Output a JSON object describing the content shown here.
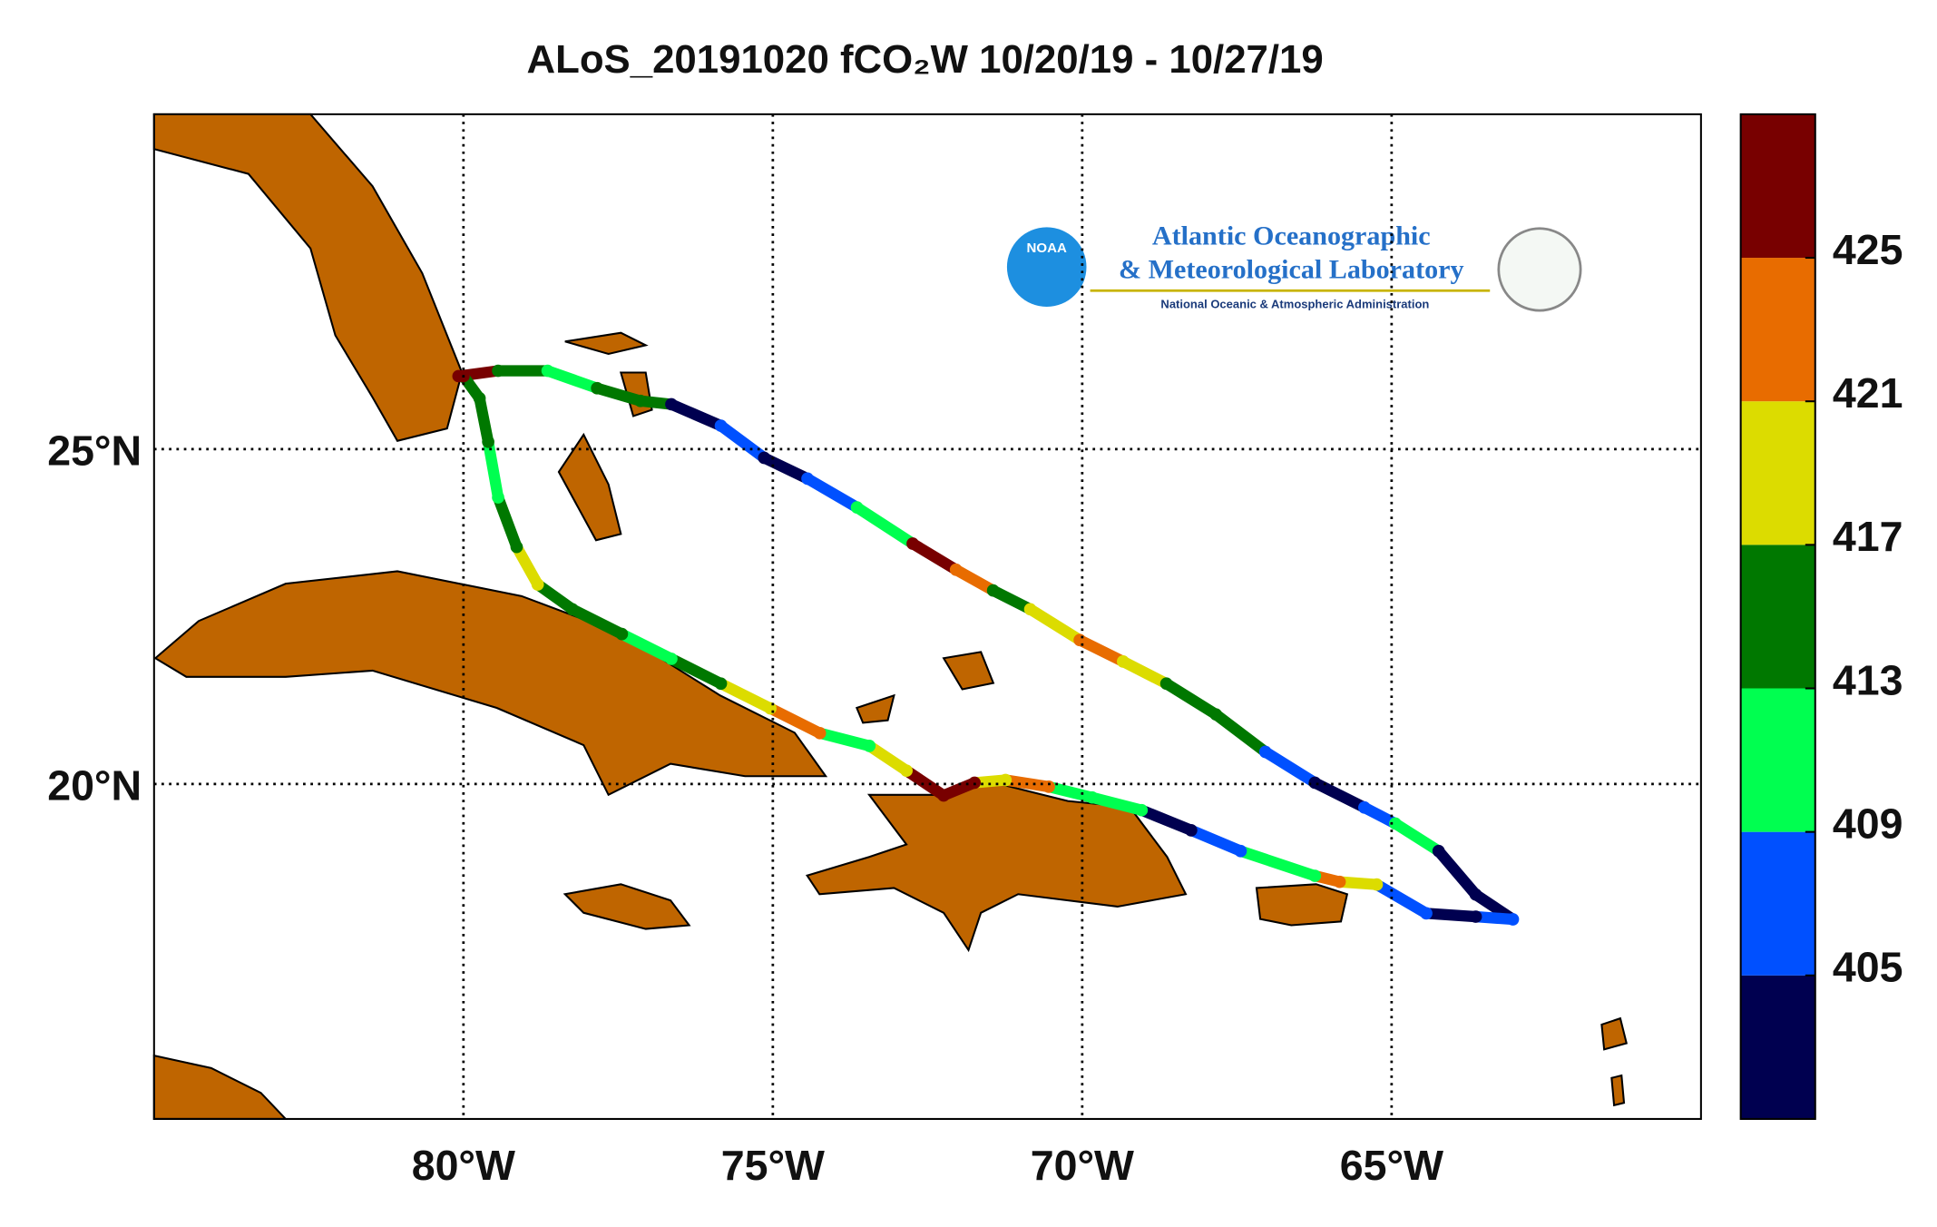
{
  "chart_data": {
    "type": "track",
    "title": "ALoS_20191020 fCO₂W 10/20/19 - 10/27/19",
    "xlim": [
      -85,
      -60
    ],
    "ylim": [
      15,
      30
    ],
    "xticks": [
      {
        "value": -80,
        "label": "80°W"
      },
      {
        "value": -75,
        "label": "75°W"
      },
      {
        "value": -70,
        "label": "70°W"
      },
      {
        "value": -65,
        "label": "65°W"
      }
    ],
    "yticks": [
      {
        "value": 20,
        "label": "20°N"
      },
      {
        "value": 25,
        "label": "25°N"
      }
    ],
    "grid": true,
    "land_color": "#bf6500",
    "clim": [
      401,
      429
    ],
    "cticks": [
      405,
      409,
      413,
      417,
      421,
      425
    ],
    "colormap": [
      "#000050",
      "#0050ff",
      "#00ff50",
      "#007800",
      "#dcdc00",
      "#e86c00",
      "#780000"
    ],
    "lon": [
      -80.08,
      -79.44,
      -78.64,
      -77.84,
      -77.14,
      -76.64,
      -75.84,
      -75.14,
      -74.44,
      -73.64,
      -72.74,
      -72.04,
      -71.44,
      -70.84,
      -70.04,
      -69.34,
      -68.64,
      -67.84,
      -67.04,
      -66.24,
      -65.44,
      -64.94,
      -64.24,
      -63.64,
      -63.04,
      -63.64,
      -64.44,
      -65.24,
      -65.84,
      -66.24,
      -67.44,
      -68.24,
      -69.04,
      -69.84,
      -70.54,
      -71.24,
      -71.74,
      -72.24,
      -72.84,
      -73.44,
      -74.24,
      -75.04,
      -75.84,
      -76.64,
      -77.44,
      -78.24,
      -78.8,
      -79.14,
      -79.44,
      -79.6,
      -79.74,
      -80.0
    ],
    "lat": [
      26.09,
      26.17,
      26.17,
      25.91,
      25.72,
      25.67,
      25.35,
      24.87,
      24.56,
      24.13,
      23.59,
      23.2,
      22.89,
      22.61,
      22.15,
      21.83,
      21.5,
      21.04,
      20.48,
      20.02,
      19.65,
      19.41,
      19.0,
      18.35,
      17.98,
      18.02,
      18.07,
      18.5,
      18.54,
      18.63,
      19.0,
      19.31,
      19.61,
      19.8,
      19.96,
      20.06,
      20.02,
      19.83,
      20.2,
      20.57,
      20.76,
      21.13,
      21.5,
      21.87,
      22.24,
      22.61,
      22.98,
      23.54,
      24.28,
      25.11,
      25.76,
      26.09
    ],
    "fco2": [
      427,
      415,
      411,
      415,
      415,
      403,
      407,
      403,
      407,
      409,
      427,
      423,
      415,
      419,
      421,
      419,
      415,
      415,
      407,
      403,
      407,
      411,
      403,
      403,
      407,
      403,
      405,
      419,
      423,
      411,
      407,
      403,
      409,
      411,
      423,
      419,
      427,
      427,
      419,
      411,
      423,
      419,
      415,
      411,
      415,
      415,
      419,
      415,
      411,
      415,
      415,
      427
    ],
    "logo": {
      "badge": "NOAA",
      "line1": "Atlantic Oceanographic",
      "line2": "& Meteorological Laboratory",
      "line3": "National Oceanic & Atmospheric Administration"
    }
  }
}
